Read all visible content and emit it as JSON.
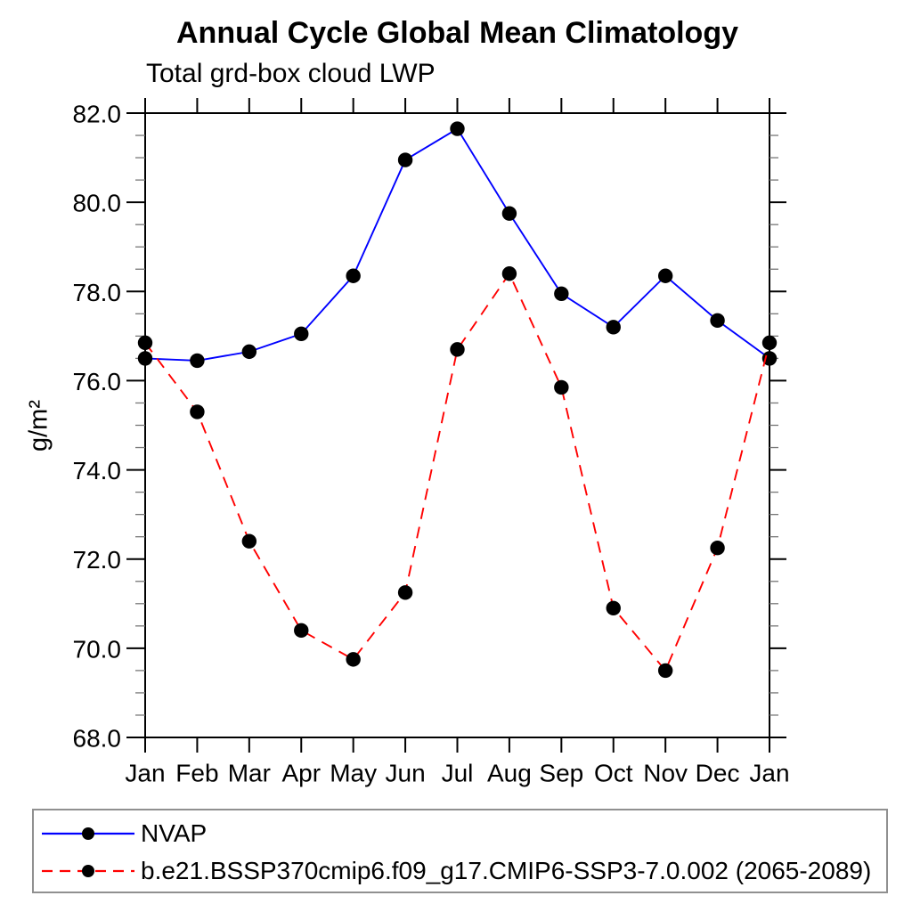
{
  "chart_data": {
    "type": "line",
    "title": "Annual Cycle Global Mean Climatology",
    "subtitle": "Total grd-box cloud LWP",
    "xlabel": "",
    "ylabel": "g/m²",
    "categories": [
      "Jan",
      "Feb",
      "Mar",
      "Apr",
      "May",
      "Jun",
      "Jul",
      "Aug",
      "Sep",
      "Oct",
      "Nov",
      "Dec",
      "Jan"
    ],
    "series": [
      {
        "name": "NVAP",
        "color": "#0000ff",
        "line_style": "solid",
        "marker": "filled-black-circle",
        "marker_color": "#000000",
        "values": [
          76.5,
          76.45,
          76.65,
          77.05,
          78.35,
          80.95,
          81.65,
          79.75,
          77.95,
          77.2,
          78.35,
          77.35,
          76.5
        ]
      },
      {
        "name": "b.e21.BSSP370cmip6.f09_g17.CMIP6-SSP3-7.0.002 (2065-2089)",
        "color": "#ff0000",
        "line_style": "dashed",
        "marker": "filled-black-circle",
        "marker_color": "#000000",
        "values": [
          76.85,
          75.3,
          72.4,
          70.4,
          69.75,
          71.25,
          76.7,
          78.4,
          75.85,
          70.9,
          69.5,
          72.25,
          76.85
        ]
      }
    ],
    "ylim": [
      68.0,
      82.0
    ],
    "y_tick_values": [
      68,
      70,
      72,
      74,
      76,
      78,
      80,
      82
    ],
    "y_tick_labels": [
      "68.0",
      "70.0",
      "72.0",
      "74.0",
      "76.0",
      "78.0",
      "80.0",
      "82.0"
    ],
    "y_minor_step": 0.5,
    "grid": false,
    "legend_position": "bottom-left",
    "frame_color": "#000000"
  }
}
